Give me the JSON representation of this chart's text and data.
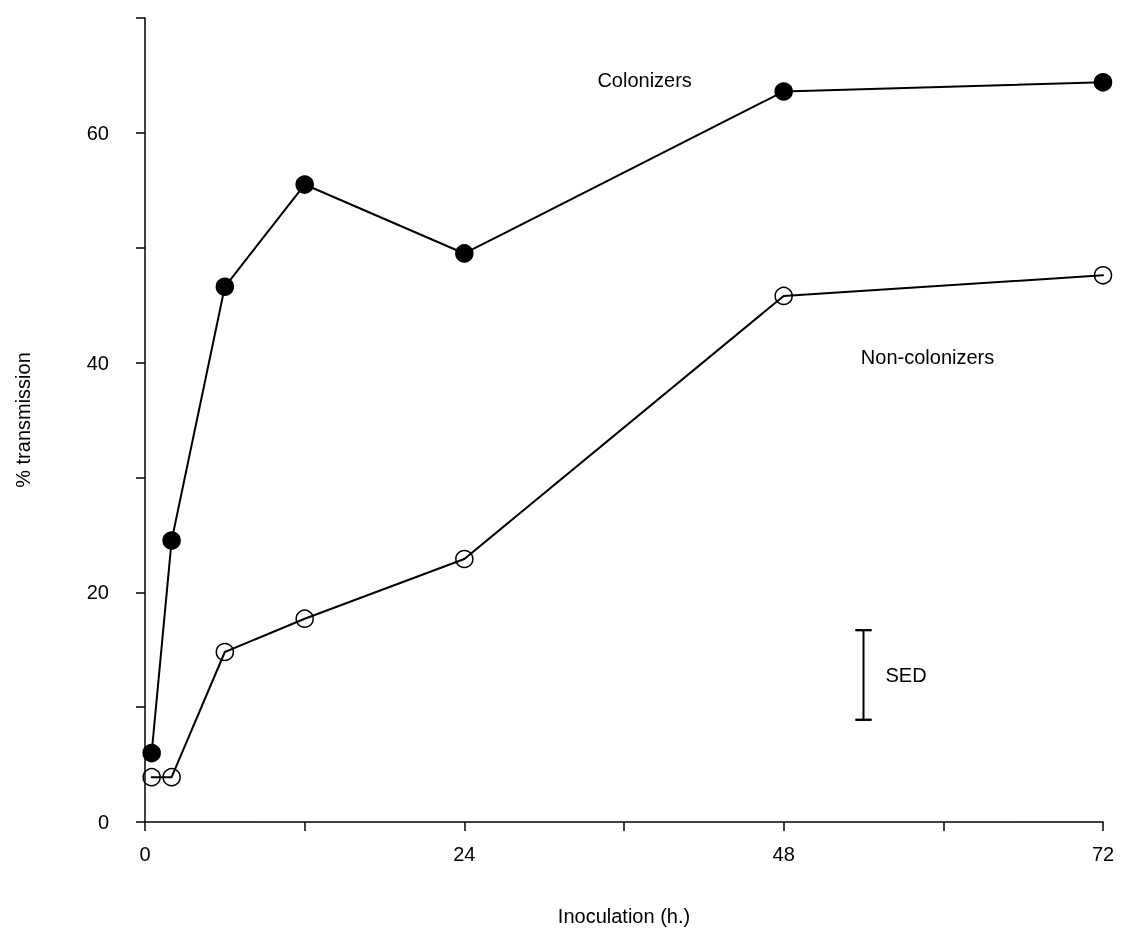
{
  "chart_data": {
    "type": "line",
    "xlabel": "Inoculation (h.)",
    "ylabel": "% transmission",
    "xlim": [
      0,
      72
    ],
    "xticks": [
      0,
      {
        "value": 12,
        "label": null
      },
      24,
      {
        "value": 36,
        "label": null
      },
      48,
      {
        "value": 60,
        "label": null
      },
      72
    ],
    "ylim": [
      0,
      70
    ],
    "yticks": [
      0,
      {
        "value": 10,
        "label": null
      },
      20,
      {
        "value": 30,
        "label": null
      },
      40,
      {
        "value": 50,
        "label": null
      },
      60,
      {
        "value": 70,
        "label": null
      }
    ],
    "grid": false,
    "legend": false,
    "line_style": "solid",
    "series": [
      {
        "name": "Colonizers",
        "color": "#000000",
        "marker": "circle",
        "x": [
          0.5,
          2,
          6,
          12,
          24,
          48,
          72
        ],
        "values": [
          6.0,
          24.5,
          46.6,
          55.5,
          49.5,
          63.6,
          64.4
        ]
      },
      {
        "name": "Non-colonizers",
        "color": "#000000",
        "marker": "open circle",
        "x": [
          0.5,
          2,
          6,
          12,
          24,
          48,
          72
        ],
        "values": [
          3.9,
          3.9,
          14.8,
          17.7,
          22.9,
          45.8,
          47.6
        ]
      },
      {
        "type": "line",
        "color": "#000000",
        "marker": "none",
        "x": [
          54,
          54
        ],
        "values": [
          8.9,
          16.7
        ],
        "errors": [
          0,
          0
        ]
      }
    ],
    "annotations": [
      {
        "text": "SED",
        "x": 54,
        "y": 12.8
      }
    ]
  }
}
